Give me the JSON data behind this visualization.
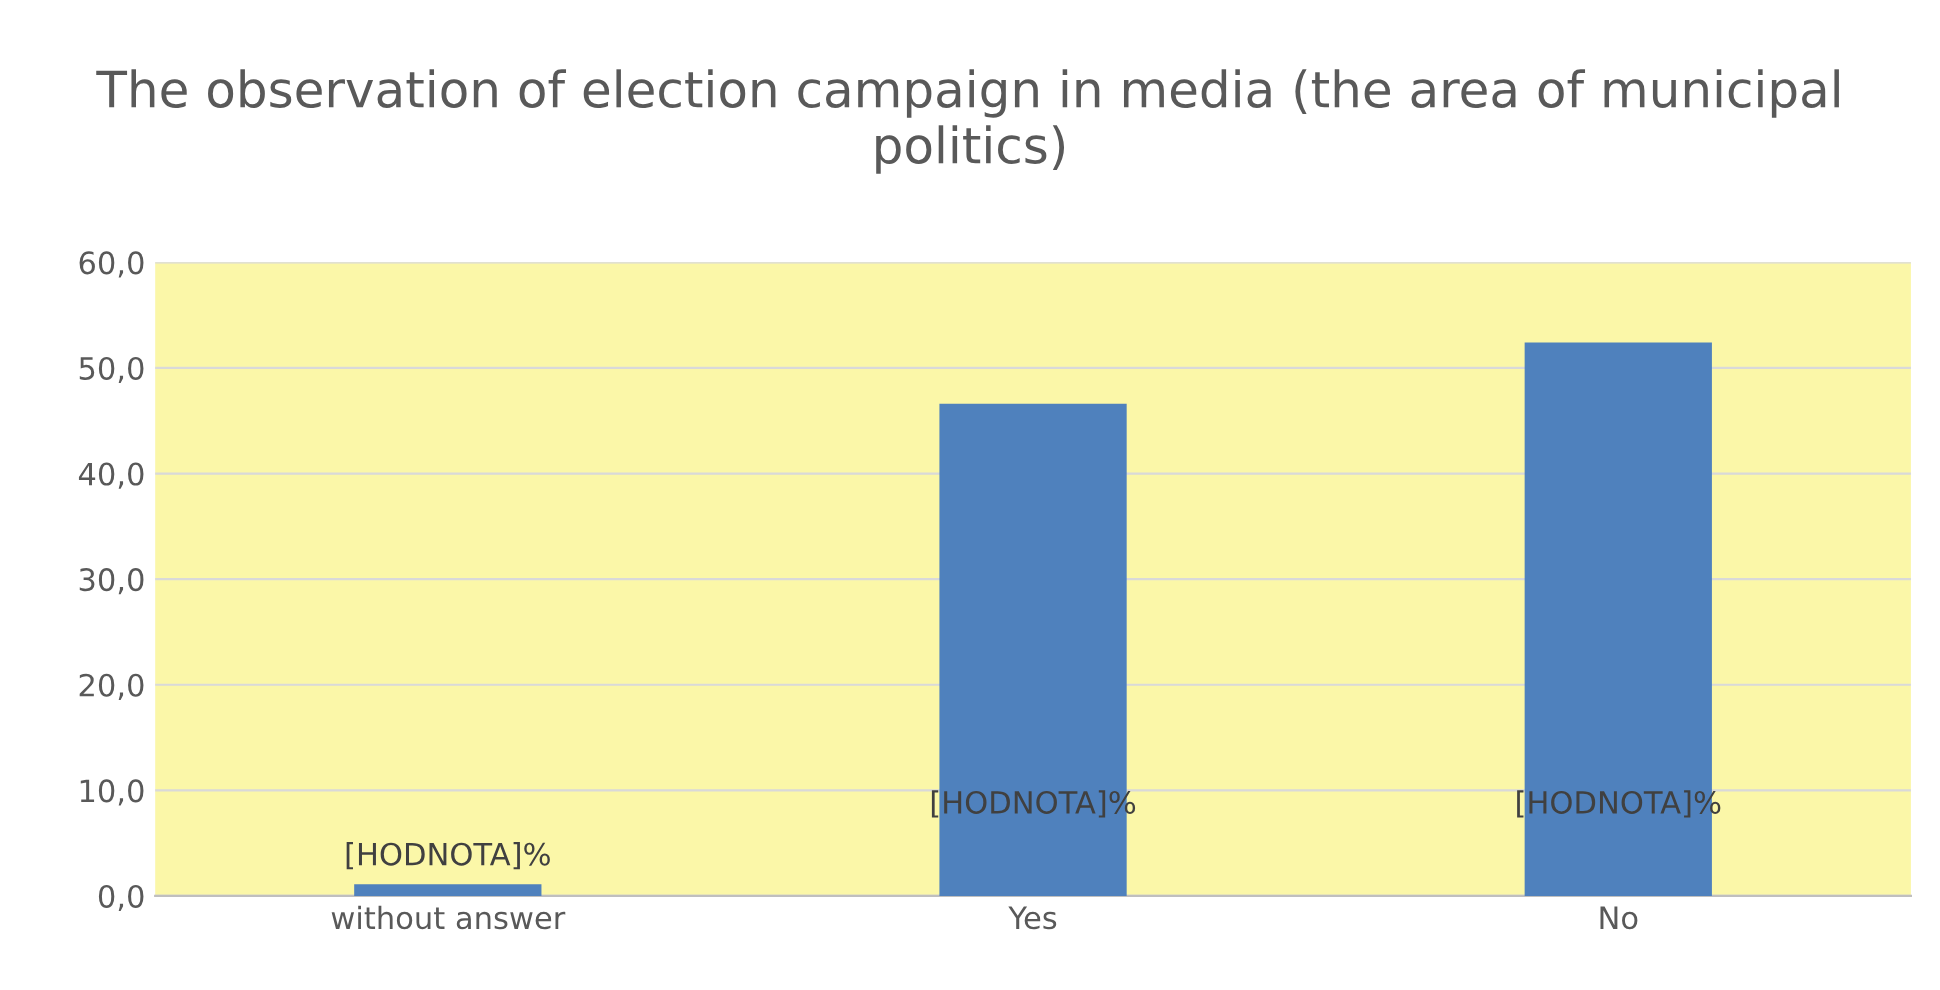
{
  "chart_data": {
    "type": "bar",
    "title": "The observation of election campaign in media (the area of municipal politics)",
    "categories": [
      "without answer",
      "Yes",
      "No"
    ],
    "values": [
      1.1,
      46.6,
      52.4
    ],
    "value_labels": [
      "[HODNOTA]%",
      "[HODNOTA]%",
      "[HODNOTA]%"
    ],
    "color": "#4f81bd",
    "ylim": [
      0,
      60
    ],
    "yticks": [
      {
        "value": 0,
        "label": "0,0"
      },
      {
        "value": 10,
        "label": "10,0"
      },
      {
        "value": 20,
        "label": "20,0"
      },
      {
        "value": 30,
        "label": "30,0"
      },
      {
        "value": 40,
        "label": "40,0"
      },
      {
        "value": 50,
        "label": "50,0"
      },
      {
        "value": 60,
        "label": "60,0"
      }
    ],
    "grid": "y"
  }
}
